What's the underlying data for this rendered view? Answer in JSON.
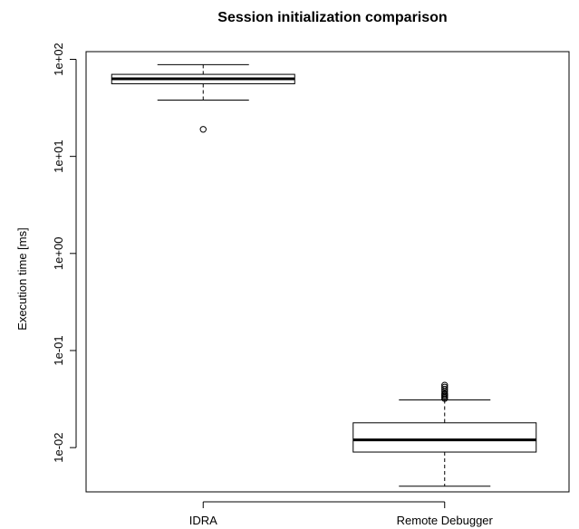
{
  "chart_data": {
    "type": "boxplot",
    "title": "Session initialization comparison",
    "xlabel": "",
    "ylabel": "Execution time [ms]",
    "y_scale": "log",
    "ylim": [
      0.0035,
      120
    ],
    "y_ticks": [
      {
        "value": 100,
        "label": "1e+02"
      },
      {
        "value": 10,
        "label": "1e+01"
      },
      {
        "value": 1,
        "label": "1e+00"
      },
      {
        "value": 0.1,
        "label": "1e-01"
      },
      {
        "value": 0.01,
        "label": "1e-02"
      }
    ],
    "categories": [
      "IDRA",
      "Remote Debugger"
    ],
    "boxes": [
      {
        "category": "IDRA",
        "whisker_low": 38,
        "q1": 56,
        "median": 63,
        "q3": 70,
        "whisker_high": 88,
        "outliers": [
          19
        ]
      },
      {
        "category": "Remote Debugger",
        "whisker_low": 0.004,
        "q1": 0.009,
        "median": 0.012,
        "q3": 0.018,
        "whisker_high": 0.031,
        "outliers": [
          0.032,
          0.033,
          0.034,
          0.035,
          0.036,
          0.038,
          0.04,
          0.042,
          0.044
        ]
      }
    ],
    "grid": false,
    "legend": "none"
  }
}
